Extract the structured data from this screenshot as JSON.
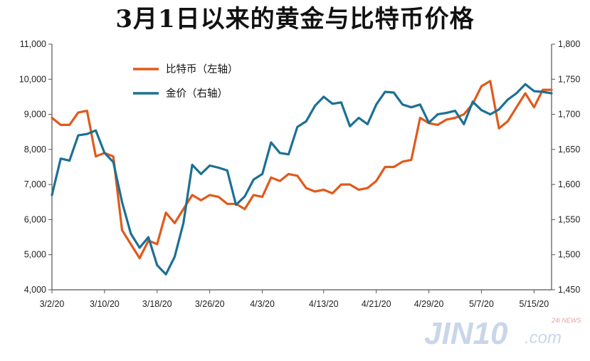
{
  "title": "3月1日以来的黄金与比特币价格",
  "watermark": {
    "main": "JIN10",
    "suffix": ".com",
    "small": "24i NEWS"
  },
  "colors": {
    "bitcoin": "#e05a1c",
    "gold": "#1c7094",
    "axis": "#555555"
  },
  "chart_data": {
    "type": "line",
    "title": "3月1日以来的黄金与比特币价格",
    "xlabel": "",
    "ylabel": "",
    "x_tick_labels": [
      "3/2/20",
      "3/10/20",
      "3/18/20",
      "3/26/20",
      "4/3/20",
      "4/13/20",
      "4/21/20",
      "4/29/20",
      "5/7/20",
      "5/15/20"
    ],
    "x_tick_index": [
      0,
      6,
      12,
      18,
      24,
      31,
      37,
      43,
      49,
      55
    ],
    "y_left": {
      "ticks": [
        "4,000",
        "5,000",
        "6,000",
        "7,000",
        "8,000",
        "9,000",
        "10,000",
        "11,000"
      ],
      "lim": [
        4000,
        11000
      ]
    },
    "y_right": {
      "ticks": [
        "1,450",
        "1,500",
        "1,550",
        "1,600",
        "1,650",
        "1,700",
        "1,750",
        "1,800"
      ],
      "lim": [
        1450,
        1800
      ]
    },
    "legend": {
      "position": "top-left"
    },
    "grid": false,
    "series": [
      {
        "name": "比特币（左轴）",
        "axis": "left",
        "values": [
          8900,
          8700,
          8700,
          9050,
          9100,
          7800,
          7900,
          7800,
          5700,
          5300,
          4900,
          5400,
          5300,
          6200,
          5900,
          6300,
          6700,
          6550,
          6700,
          6650,
          6450,
          6450,
          6300,
          6700,
          6650,
          7200,
          7100,
          7300,
          7250,
          6900,
          6800,
          6850,
          6750,
          7000,
          7000,
          6850,
          6900,
          7100,
          7500,
          7500,
          7650,
          7700,
          8900,
          8750,
          8700,
          8850,
          8900,
          9000,
          9300,
          9800,
          9950,
          8600,
          8800,
          9200,
          9600,
          9200,
          9700,
          9700
        ]
      },
      {
        "name": "金价（右轴）",
        "axis": "right",
        "values": [
          1585,
          1637,
          1634,
          1670,
          1672,
          1677,
          1645,
          1632,
          1575,
          1530,
          1510,
          1525,
          1485,
          1472,
          1497,
          1545,
          1628,
          1615,
          1627,
          1624,
          1620,
          1571,
          1583,
          1607,
          1615,
          1660,
          1645,
          1643,
          1682,
          1690,
          1712,
          1725,
          1715,
          1717,
          1683,
          1695,
          1686,
          1714,
          1732,
          1731,
          1714,
          1710,
          1714,
          1688,
          1700,
          1702,
          1705,
          1686,
          1718,
          1706,
          1700,
          1707,
          1721,
          1730,
          1743,
          1733,
          1732,
          1730
        ]
      }
    ]
  }
}
